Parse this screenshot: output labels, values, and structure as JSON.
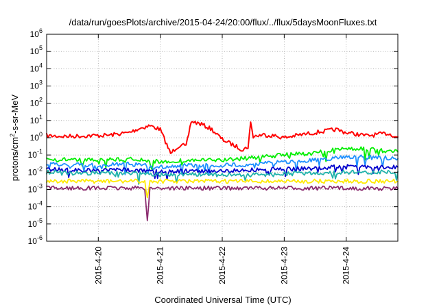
{
  "chart_data": {
    "type": "line",
    "title": "/data/run/goesPlots/archive/2015-04-24/20:00/flux/../flux/5daysMoonFluxes.txt",
    "xlabel": "Coordinated Universal Time (UTC)",
    "ylabel": {
      "prefix": "protons/cm",
      "superscript": "2",
      "suffix": "-s-sr-MeV"
    },
    "y_scale": "log",
    "ylim_exponents": [
      -6,
      6
    ],
    "y_ticks": [
      {
        "base": "10",
        "exp": "6",
        "value": 1000000.0
      },
      {
        "base": "10",
        "exp": "5",
        "value": 100000.0
      },
      {
        "base": "10",
        "exp": "4",
        "value": 10000.0
      },
      {
        "base": "10",
        "exp": "3",
        "value": 1000.0
      },
      {
        "base": "10",
        "exp": "2",
        "value": 100.0
      },
      {
        "base": "10",
        "exp": "1",
        "value": 10.0
      },
      {
        "base": "10",
        "exp": "0",
        "value": 1.0
      },
      {
        "base": "10",
        "exp": "-1",
        "value": 0.1
      },
      {
        "base": "10",
        "exp": "-2",
        "value": 0.01
      },
      {
        "base": "10",
        "exp": "-3",
        "value": 0.001
      },
      {
        "base": "10",
        "exp": "-4",
        "value": 0.0001
      },
      {
        "base": "10",
        "exp": "-5",
        "value": 1e-05
      },
      {
        "base": "10",
        "exp": "-6",
        "value": 1e-06
      }
    ],
    "xlim": [
      "2015-04-19 04:00",
      "2015-04-24 20:00"
    ],
    "x_ticks": [
      "2015-4-20",
      "2015-4-21",
      "2015-4-22",
      "2015-4-23",
      "2015-4-24"
    ],
    "grid": true,
    "legend": "none",
    "series": [
      {
        "color": "#ff0000",
        "values": [
          [
            "2015-04-19 04:00",
            1.3
          ],
          [
            "2015-04-19 12:00",
            1.2
          ],
          [
            "2015-04-19 20:00",
            1.3
          ],
          [
            "2015-04-20 04:00",
            1.4
          ],
          [
            "2015-04-20 12:00",
            2.0
          ],
          [
            "2015-04-20 16:00",
            3.5
          ],
          [
            "2015-04-20 20:00",
            5.0
          ],
          [
            "2015-04-21 00:00",
            3.0
          ],
          [
            "2015-04-21 02:00",
            0.6
          ],
          [
            "2015-04-21 04:00",
            0.12
          ],
          [
            "2015-04-21 06:00",
            0.25
          ],
          [
            "2015-04-21 08:00",
            0.4
          ],
          [
            "2015-04-21 10:00",
            0.3
          ],
          [
            "2015-04-21 12:00",
            9.0
          ],
          [
            "2015-04-21 16:00",
            6.0
          ],
          [
            "2015-04-21 20:00",
            3.0
          ],
          [
            "2015-04-22 00:00",
            0.8
          ],
          [
            "2015-04-22 04:00",
            0.4
          ],
          [
            "2015-04-22 08:00",
            0.2
          ],
          [
            "2015-04-22 10:00",
            0.3
          ],
          [
            "2015-04-22 11:00",
            7.0
          ],
          [
            "2015-04-22 12:00",
            1.2
          ],
          [
            "2015-04-22 16:00",
            1.5
          ],
          [
            "2015-04-22 20:00",
            1.3
          ],
          [
            "2015-04-23 00:00",
            1.0
          ],
          [
            "2015-04-23 04:00",
            1.3
          ],
          [
            "2015-04-23 12:00",
            2.0
          ],
          [
            "2015-04-23 20:00",
            3.0
          ],
          [
            "2015-04-24 00:00",
            2.0
          ],
          [
            "2015-04-24 08:00",
            1.3
          ],
          [
            "2015-04-24 16:00",
            1.8
          ],
          [
            "2015-04-24 20:00",
            1.1
          ]
        ]
      },
      {
        "color": "#00ee00",
        "values": [
          [
            "2015-04-19 04:00",
            0.06
          ],
          [
            "2015-04-19 20:00",
            0.05
          ],
          [
            "2015-04-20 12:00",
            0.06
          ],
          [
            "2015-04-21 00:00",
            0.04
          ],
          [
            "2015-04-21 12:00",
            0.05
          ],
          [
            "2015-04-22 00:00",
            0.05
          ],
          [
            "2015-04-22 12:00",
            0.07
          ],
          [
            "2015-04-23 00:00",
            0.1
          ],
          [
            "2015-04-23 12:00",
            0.13
          ],
          [
            "2015-04-24 00:00",
            0.25
          ],
          [
            "2015-04-24 12:00",
            0.2
          ],
          [
            "2015-04-24 20:00",
            0.15
          ]
        ]
      },
      {
        "color": "#1e90ff",
        "values": [
          [
            "2015-04-19 04:00",
            0.03
          ],
          [
            "2015-04-19 20:00",
            0.025
          ],
          [
            "2015-04-20 12:00",
            0.03
          ],
          [
            "2015-04-21 00:00",
            0.02
          ],
          [
            "2015-04-21 12:00",
            0.025
          ],
          [
            "2015-04-22 00:00",
            0.025
          ],
          [
            "2015-04-22 12:00",
            0.03
          ],
          [
            "2015-04-23 00:00",
            0.04
          ],
          [
            "2015-04-23 12:00",
            0.05
          ],
          [
            "2015-04-24 00:00",
            0.08
          ],
          [
            "2015-04-24 12:00",
            0.07
          ],
          [
            "2015-04-24 20:00",
            0.06
          ]
        ]
      },
      {
        "color": "#0000cd",
        "values": [
          [
            "2015-04-19 04:00",
            0.015
          ],
          [
            "2015-04-19 20:00",
            0.013
          ],
          [
            "2015-04-20 12:00",
            0.014
          ],
          [
            "2015-04-21 00:00",
            0.011
          ],
          [
            "2015-04-21 12:00",
            0.012
          ],
          [
            "2015-04-22 00:00",
            0.012
          ],
          [
            "2015-04-22 12:00",
            0.014
          ],
          [
            "2015-04-23 00:00",
            0.015
          ],
          [
            "2015-04-23 12:00",
            0.017
          ],
          [
            "2015-04-24 00:00",
            0.022
          ],
          [
            "2015-04-24 12:00",
            0.02
          ],
          [
            "2015-04-24 20:00",
            0.02
          ]
        ]
      },
      {
        "color": "#20b2aa",
        "values": [
          [
            "2015-04-19 04:00",
            0.01
          ],
          [
            "2015-04-19 20:00",
            0.009
          ],
          [
            "2015-04-20 12:00",
            0.009
          ],
          [
            "2015-04-21 00:00",
            0.007
          ],
          [
            "2015-04-21 12:00",
            0.008
          ],
          [
            "2015-04-22 00:00",
            0.007
          ],
          [
            "2015-04-22 12:00",
            0.007
          ],
          [
            "2015-04-23 00:00",
            0.008
          ],
          [
            "2015-04-23 12:00",
            0.009
          ],
          [
            "2015-04-24 00:00",
            0.01
          ],
          [
            "2015-04-24 12:00",
            0.01
          ],
          [
            "2015-04-24 20:00",
            0.011
          ]
        ]
      },
      {
        "color": "#ffea00",
        "values": [
          [
            "2015-04-19 04:00",
            0.003
          ],
          [
            "2015-04-20 00:00",
            0.003
          ],
          [
            "2015-04-20 18:00",
            0.003
          ],
          [
            "2015-04-20 19:00",
            0.0003
          ],
          [
            "2015-04-20 20:00",
            0.003
          ],
          [
            "2015-04-21 00:00",
            0.003
          ],
          [
            "2015-04-22 00:00",
            0.003
          ],
          [
            "2015-04-23 00:00",
            0.003
          ],
          [
            "2015-04-24 00:00",
            0.003
          ],
          [
            "2015-04-24 20:00",
            0.003
          ]
        ]
      },
      {
        "color": "#8b2c6f",
        "values": [
          [
            "2015-04-19 04:00",
            0.0012
          ],
          [
            "2015-04-20 00:00",
            0.0012
          ],
          [
            "2015-04-20 18:00",
            0.0012
          ],
          [
            "2015-04-20 19:00",
            1.5e-05
          ],
          [
            "2015-04-20 20:00",
            0.0012
          ],
          [
            "2015-04-21 00:00",
            0.0012
          ],
          [
            "2015-04-22 00:00",
            0.0012
          ],
          [
            "2015-04-23 00:00",
            0.0012
          ],
          [
            "2015-04-24 00:00",
            0.0012
          ],
          [
            "2015-04-24 20:00",
            0.0011
          ]
        ]
      }
    ]
  }
}
